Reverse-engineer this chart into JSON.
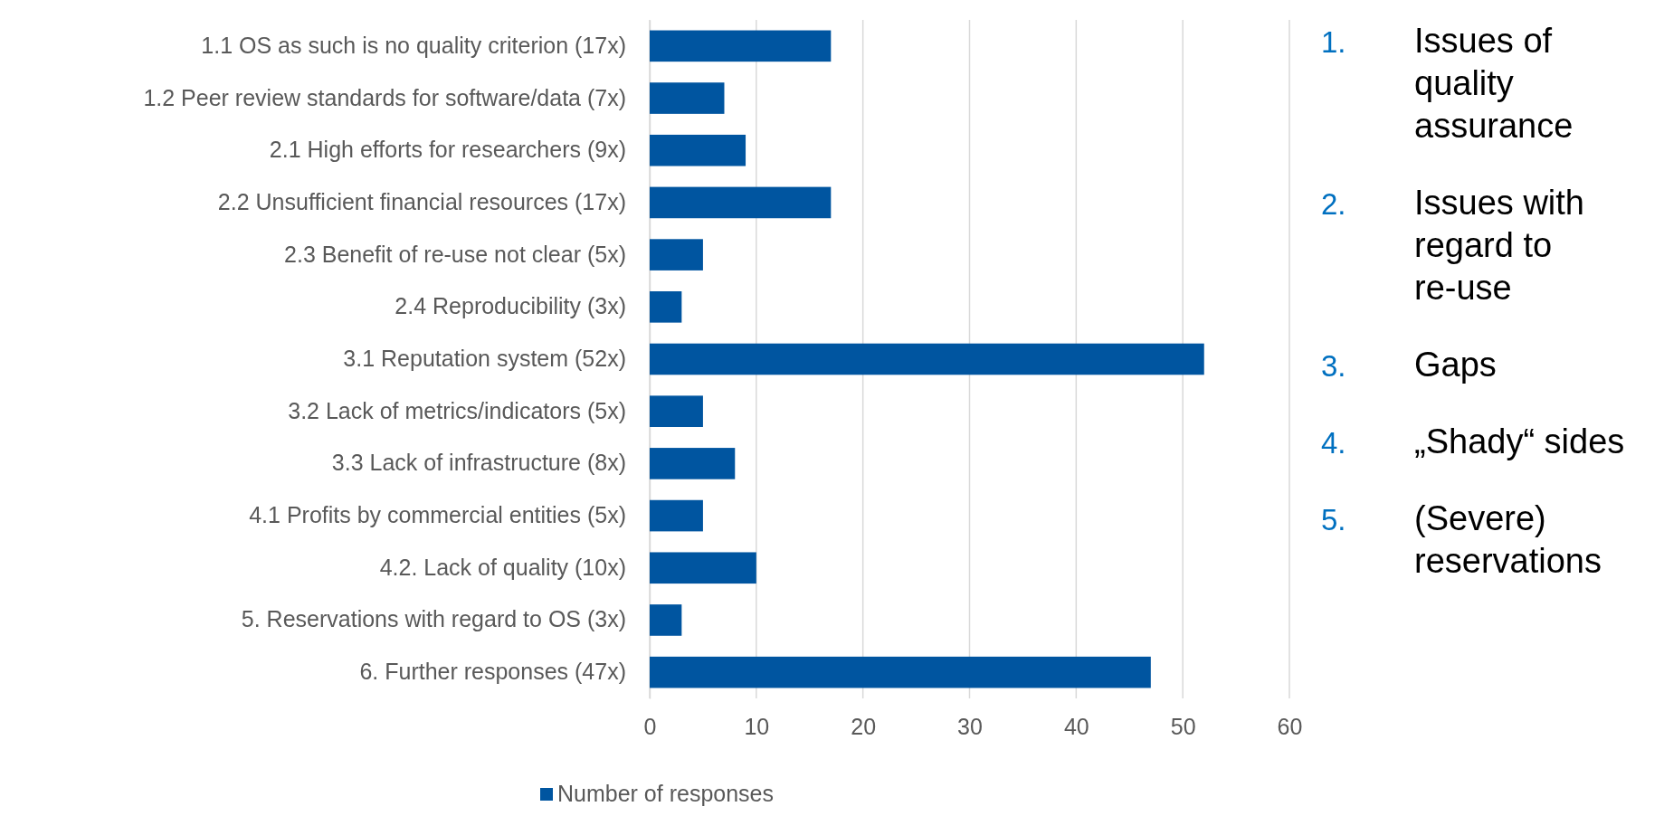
{
  "chart_data": {
    "type": "bar",
    "orientation": "horizontal",
    "categories": [
      "1.1 OS as such is no quality criterion (17x)",
      "1.2 Peer review standards for software/data (7x)",
      "2.1 High efforts for researchers (9x)",
      "2.2 Unsufficient financial resources (17x)",
      "2.3 Benefit of re-use not clear (5x)",
      "2.4 Reproducibility (3x)",
      "3.1 Reputation system (52x)",
      "3.2 Lack of metrics/indicators (5x)",
      "3.3 Lack of infrastructure (8x)",
      "4.1 Profits by commercial entities (5x)",
      "4.2. Lack of quality (10x)",
      "5. Reservations with regard to OS (3x)",
      "6. Further responses (47x)"
    ],
    "series": [
      {
        "name": "Number of responses",
        "color": "#0055a0",
        "values": [
          17,
          7,
          9,
          17,
          5,
          3,
          52,
          5,
          8,
          5,
          10,
          3,
          47
        ]
      }
    ],
    "xlim": [
      0,
      60
    ],
    "xticks": [
      0,
      10,
      20,
      30,
      40,
      50,
      60
    ],
    "grid": "x",
    "legend": "bottom",
    "annotations": [
      "1. Issues of quality assurance",
      "2. Issues with regard to re-use",
      "3. Gaps",
      "4. „Shady“ sides",
      "5. (Severe) reservations"
    ]
  }
}
